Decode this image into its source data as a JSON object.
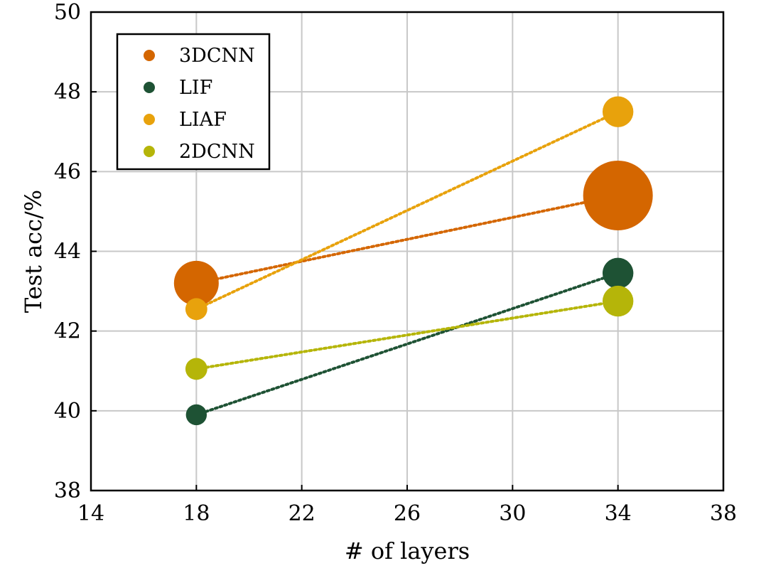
{
  "chart_data": {
    "type": "scatter",
    "title": "",
    "xlabel": "# of layers",
    "ylabel": "Test acc/%",
    "xlim": [
      14,
      38
    ],
    "ylim": [
      38,
      50
    ],
    "xticks": [
      "14",
      "18",
      "22",
      "26",
      "30",
      "34",
      "38"
    ],
    "yticks": [
      "38",
      "40",
      "42",
      "44",
      "46",
      "48",
      "50"
    ],
    "grid": true,
    "legend_position": "top-left",
    "bubble_size_encoded": true,
    "series": [
      {
        "name": "3DCNN",
        "color": "#d46600",
        "points": [
          {
            "x": 18,
            "y": 43.2,
            "size": 0.45
          },
          {
            "x": 34,
            "y": 45.4,
            "size": 0.7
          }
        ]
      },
      {
        "name": "LIF",
        "color": "#1e5234",
        "points": [
          {
            "x": 18,
            "y": 39.9,
            "size": 0.21
          },
          {
            "x": 34,
            "y": 43.45,
            "size": 0.31
          }
        ]
      },
      {
        "name": "LIAF",
        "color": "#e8a20c",
        "points": [
          {
            "x": 18,
            "y": 42.55,
            "size": 0.22
          },
          {
            "x": 34,
            "y": 47.5,
            "size": 0.31
          }
        ]
      },
      {
        "name": "2DCNN",
        "color": "#b5b509",
        "points": [
          {
            "x": 18,
            "y": 41.05,
            "size": 0.22
          },
          {
            "x": 34,
            "y": 42.75,
            "size": 0.31
          }
        ]
      }
    ]
  }
}
